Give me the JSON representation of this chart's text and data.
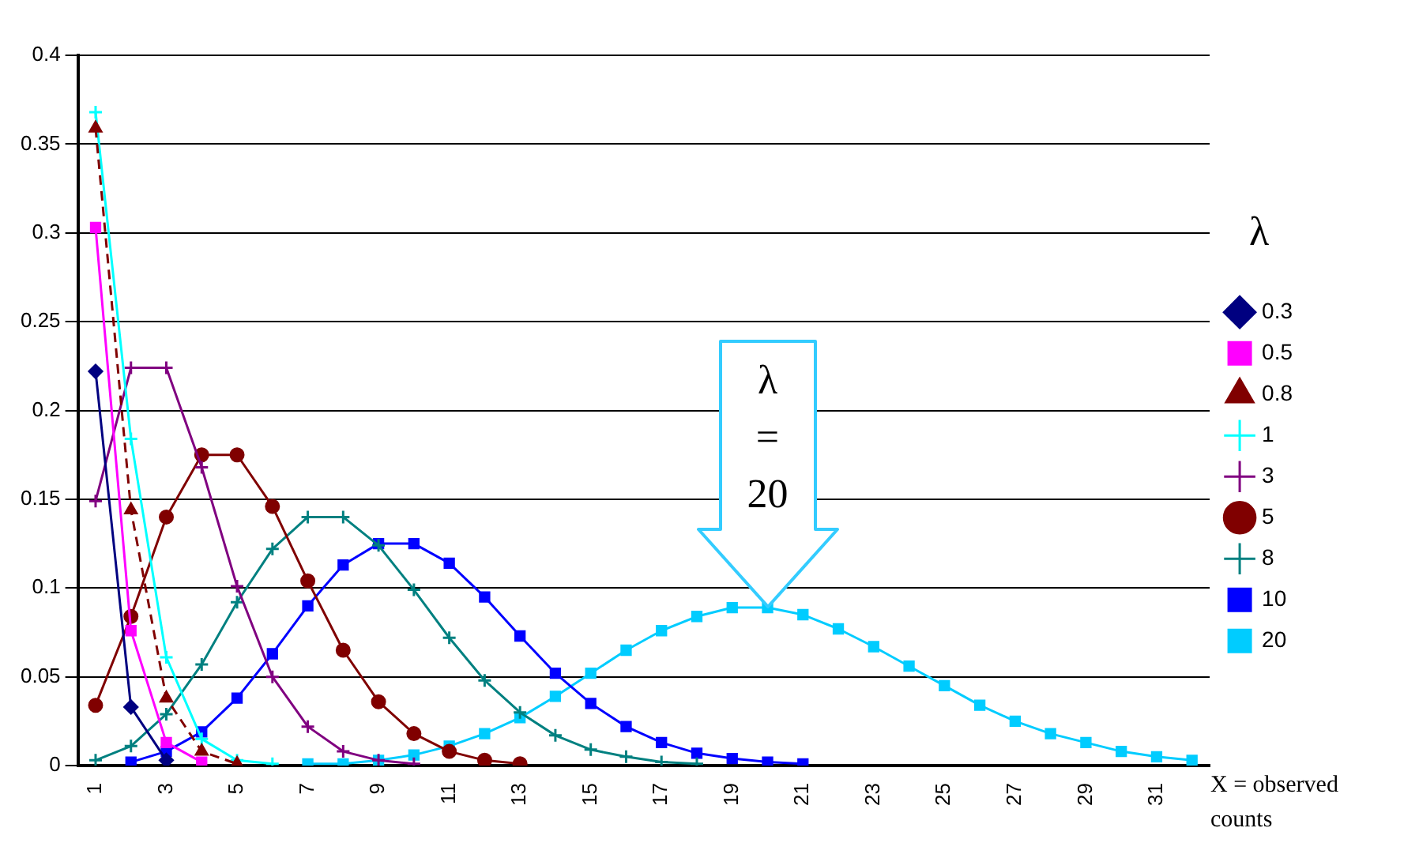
{
  "chart_data": {
    "type": "line",
    "xlabel": "X = observed counts",
    "legend_title": "λ",
    "legend": "right",
    "grid": "y",
    "x": [
      1,
      2,
      3,
      4,
      5,
      6,
      7,
      8,
      9,
      10,
      11,
      12,
      13,
      14,
      15,
      16,
      17,
      18,
      19,
      20,
      21,
      22,
      23,
      24,
      25,
      26,
      27,
      28,
      29,
      30,
      31,
      32
    ],
    "xlim": [
      0.5,
      32.5
    ],
    "xticks": [
      1,
      3,
      5,
      7,
      9,
      11,
      13,
      15,
      17,
      19,
      21,
      23,
      25,
      27,
      29,
      31
    ],
    "ylim": [
      0,
      0.4
    ],
    "yticks": [
      0,
      0.05,
      0.1,
      0.15,
      0.2,
      0.25,
      0.3,
      0.35,
      0.4
    ],
    "annotations": [
      {
        "text": "λ = 20",
        "x": 20,
        "y": 0.089
      }
    ],
    "series": [
      {
        "name": "0.3",
        "color": "#000080",
        "marker": "diamond",
        "line_style": "solid",
        "values": [
          0.222,
          0.033,
          0.003,
          null,
          null,
          null,
          null,
          null,
          null,
          null,
          null,
          null,
          null,
          null,
          null,
          null,
          null,
          null,
          null,
          null,
          null,
          null,
          null,
          null,
          null,
          null,
          null,
          null,
          null,
          null,
          null,
          null
        ]
      },
      {
        "name": "0.5",
        "color": "#ff00ff",
        "marker": "square",
        "line_style": "solid",
        "values": [
          0.303,
          0.076,
          0.013,
          0.002,
          null,
          null,
          null,
          null,
          null,
          null,
          null,
          null,
          null,
          null,
          null,
          null,
          null,
          null,
          null,
          null,
          null,
          null,
          null,
          null,
          null,
          null,
          null,
          null,
          null,
          null,
          null,
          null
        ]
      },
      {
        "name": "0.8",
        "color": "#800000",
        "marker": "triangle",
        "line_style": "dashed",
        "values": [
          0.359,
          0.144,
          0.038,
          0.008,
          0.001,
          null,
          null,
          null,
          null,
          null,
          null,
          null,
          null,
          null,
          null,
          null,
          null,
          null,
          null,
          null,
          null,
          null,
          null,
          null,
          null,
          null,
          null,
          null,
          null,
          null,
          null,
          null
        ]
      },
      {
        "name": "1",
        "color": "#00ffff",
        "marker": "cross",
        "line_style": "solid",
        "values": [
          0.368,
          0.184,
          0.061,
          0.015,
          0.003,
          0.001,
          null,
          null,
          null,
          null,
          null,
          null,
          null,
          null,
          null,
          null,
          null,
          null,
          null,
          null,
          null,
          null,
          null,
          null,
          null,
          null,
          null,
          null,
          null,
          null,
          null,
          null
        ]
      },
      {
        "name": "3",
        "color": "#800080",
        "marker": "cross",
        "line_style": "solid",
        "values": [
          0.149,
          0.224,
          0.224,
          0.168,
          0.101,
          0.05,
          0.022,
          0.008,
          0.003,
          0.001,
          null,
          null,
          null,
          null,
          null,
          null,
          null,
          null,
          null,
          null,
          null,
          null,
          null,
          null,
          null,
          null,
          null,
          null,
          null,
          null,
          null,
          null
        ]
      },
      {
        "name": "5",
        "color": "#800000",
        "marker": "circle",
        "line_style": "solid",
        "values": [
          0.034,
          0.084,
          0.14,
          0.175,
          0.175,
          0.146,
          0.104,
          0.065,
          0.036,
          0.018,
          0.008,
          0.003,
          0.001,
          null,
          null,
          null,
          null,
          null,
          null,
          null,
          null,
          null,
          null,
          null,
          null,
          null,
          null,
          null,
          null,
          null,
          null,
          null
        ]
      },
      {
        "name": "8",
        "color": "#008080",
        "marker": "cross",
        "line_style": "solid",
        "values": [
          0.003,
          0.011,
          0.029,
          0.057,
          0.092,
          0.122,
          0.14,
          0.14,
          0.124,
          0.099,
          0.072,
          0.048,
          0.03,
          0.017,
          0.009,
          0.005,
          0.002,
          0.001,
          null,
          null,
          null,
          null,
          null,
          null,
          null,
          null,
          null,
          null,
          null,
          null,
          null,
          null
        ]
      },
      {
        "name": "10",
        "color": "#0000ff",
        "marker": "square",
        "line_style": "solid",
        "values": [
          null,
          0.002,
          0.008,
          0.019,
          0.038,
          0.063,
          0.09,
          0.113,
          0.125,
          0.125,
          0.114,
          0.095,
          0.073,
          0.052,
          0.035,
          0.022,
          0.013,
          0.007,
          0.004,
          0.002,
          0.001,
          null,
          null,
          null,
          null,
          null,
          null,
          null,
          null,
          null,
          null,
          null
        ]
      },
      {
        "name": "20",
        "color": "#00ccff",
        "marker": "square",
        "line_style": "solid",
        "values": [
          null,
          null,
          null,
          null,
          null,
          null,
          0.001,
          0.001,
          0.003,
          0.006,
          0.011,
          0.018,
          0.027,
          0.039,
          0.052,
          0.065,
          0.076,
          0.084,
          0.089,
          0.089,
          0.085,
          0.077,
          0.067,
          0.056,
          0.045,
          0.034,
          0.025,
          0.018,
          0.013,
          0.008,
          0.005,
          0.003
        ]
      }
    ]
  }
}
